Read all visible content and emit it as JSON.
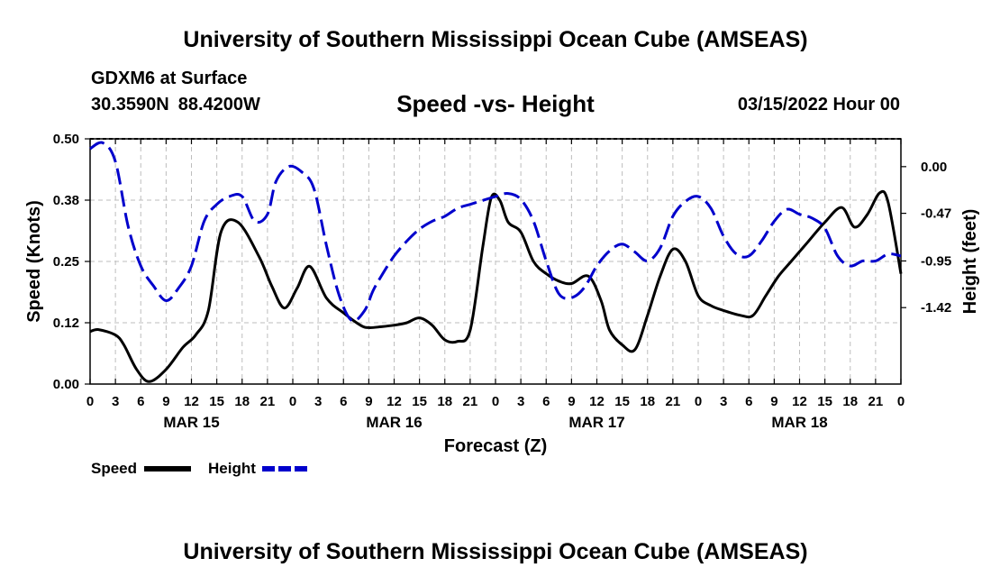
{
  "header": {
    "title": "University of Southern Mississippi Ocean Cube (AMSEAS)",
    "station": "GDXM6 at Surface",
    "lat": "30.3590N",
    "lon": "88.4200W",
    "subtitle": "Speed -vs- Height",
    "datestamp": "03/15/2022 Hour 00"
  },
  "footer": {
    "title": "University of Southern Mississippi Ocean Cube (AMSEAS)"
  },
  "chart_data": {
    "type": "line",
    "title": "Speed -vs- Height",
    "xlabel": "Forecast (Z)",
    "ylabel": "Speed (Knots)",
    "y2label": "Height (feet)",
    "xlim": [
      0,
      96
    ],
    "ylim": [
      0,
      0.5
    ],
    "y2lim": [
      -2.19,
      0.28
    ],
    "grid": true,
    "legend_position": "bottom-left",
    "x_tick_hours": [
      0,
      3,
      6,
      9,
      12,
      15,
      18,
      21,
      24,
      27,
      30,
      33,
      36,
      39,
      42,
      45,
      48,
      51,
      54,
      57,
      60,
      63,
      66,
      69,
      72,
      75,
      78,
      81,
      84,
      87,
      90,
      93,
      96
    ],
    "x_tick_labels": [
      "0",
      "3",
      "6",
      "9",
      "12",
      "15",
      "18",
      "21",
      "0",
      "3",
      "6",
      "9",
      "12",
      "15",
      "18",
      "21",
      "0",
      "3",
      "6",
      "9",
      "12",
      "15",
      "18",
      "21",
      "0",
      "3",
      "6",
      "9",
      "12",
      "15",
      "18",
      "21",
      "0"
    ],
    "date_labels": [
      {
        "hour": 12,
        "label": "MAR 15"
      },
      {
        "hour": 36,
        "label": "MAR 16"
      },
      {
        "hour": 60,
        "label": "MAR 17"
      },
      {
        "hour": 84,
        "label": "MAR 18"
      }
    ],
    "y_ticks": [
      {
        "value": 0,
        "label": "0.00"
      },
      {
        "value": 0.125,
        "label": "0.12"
      },
      {
        "value": 0.25,
        "label": "0.25"
      },
      {
        "value": 0.375,
        "label": "0.38"
      },
      {
        "value": 0.5,
        "label": "0.50"
      }
    ],
    "y2_ticks": [
      {
        "value": 0.0,
        "label": "0.00"
      },
      {
        "value": -0.47,
        "label": "-0.47"
      },
      {
        "value": -0.95,
        "label": "-0.95"
      },
      {
        "value": -1.42,
        "label": "-1.42"
      }
    ],
    "series": [
      {
        "name": "Speed",
        "axis": "left",
        "color": "#000000",
        "dash": "solid",
        "x": [
          0,
          1,
          3,
          4,
          5.5,
          7,
          9,
          11,
          12.5,
          14,
          15.5,
          17.5,
          20,
          21.5,
          23,
          24.5,
          26,
          28,
          30,
          32,
          33,
          34.5,
          36,
          37.5,
          39,
          40.5,
          42,
          43.5,
          45,
          46.5,
          47.5,
          48.5,
          49.5,
          51,
          52.5,
          54,
          55.5,
          57,
          59,
          60.5,
          61.5,
          63,
          64.5,
          66,
          67.5,
          69,
          70.5,
          72,
          73.5,
          75,
          77,
          78.5,
          80,
          81.5,
          83,
          85,
          87,
          89,
          90.5,
          92,
          93.5,
          94.5,
          96
        ],
        "values": [
          0.107,
          0.111,
          0.1,
          0.08,
          0.03,
          0.005,
          0.03,
          0.075,
          0.1,
          0.15,
          0.31,
          0.33,
          0.26,
          0.2,
          0.155,
          0.195,
          0.24,
          0.175,
          0.145,
          0.12,
          0.115,
          0.117,
          0.12,
          0.125,
          0.135,
          0.12,
          0.09,
          0.087,
          0.11,
          0.28,
          0.38,
          0.375,
          0.33,
          0.31,
          0.25,
          0.225,
          0.21,
          0.205,
          0.22,
          0.17,
          0.11,
          0.08,
          0.07,
          0.14,
          0.22,
          0.275,
          0.25,
          0.18,
          0.16,
          0.15,
          0.14,
          0.14,
          0.18,
          0.22,
          0.25,
          0.29,
          0.33,
          0.36,
          0.32,
          0.345,
          0.39,
          0.37,
          0.225
        ]
      },
      {
        "name": "Height",
        "axis": "right",
        "color": "#0000cc",
        "dash": "dashed",
        "x": [
          0,
          1.5,
          3,
          4.5,
          6,
          7.5,
          9,
          10.5,
          12,
          13.5,
          15,
          16.5,
          18,
          19.5,
          21,
          22,
          23.5,
          25,
          26.5,
          28,
          29.5,
          31,
          32.5,
          33.5,
          34.5,
          36,
          37.5,
          39,
          40.5,
          42,
          43.5,
          45,
          46.5,
          48,
          49.5,
          51,
          52.5,
          54,
          55.5,
          57,
          58.5,
          60,
          61.5,
          63,
          64.5,
          66,
          67.5,
          69,
          70.5,
          72,
          73.5,
          75,
          76.5,
          78,
          79.5,
          81,
          82.5,
          84,
          85.5,
          87,
          88.5,
          90,
          91.5,
          93,
          94.5,
          96
        ],
        "values": [
          0.18,
          0.24,
          0.05,
          -0.6,
          -1.0,
          -1.2,
          -1.35,
          -1.22,
          -1.0,
          -0.55,
          -0.38,
          -0.3,
          -0.3,
          -0.55,
          -0.48,
          -0.15,
          0.0,
          -0.05,
          -0.22,
          -0.8,
          -1.3,
          -1.55,
          -1.45,
          -1.25,
          -1.1,
          -0.9,
          -0.75,
          -0.63,
          -0.55,
          -0.5,
          -0.42,
          -0.38,
          -0.34,
          -0.3,
          -0.27,
          -0.33,
          -0.55,
          -0.95,
          -1.28,
          -1.32,
          -1.22,
          -1.0,
          -0.85,
          -0.78,
          -0.86,
          -0.95,
          -0.82,
          -0.5,
          -0.35,
          -0.3,
          -0.42,
          -0.7,
          -0.88,
          -0.9,
          -0.75,
          -0.55,
          -0.43,
          -0.48,
          -0.52,
          -0.62,
          -0.9,
          -1.0,
          -0.95,
          -0.95,
          -0.88,
          -0.9
        ]
      }
    ]
  }
}
